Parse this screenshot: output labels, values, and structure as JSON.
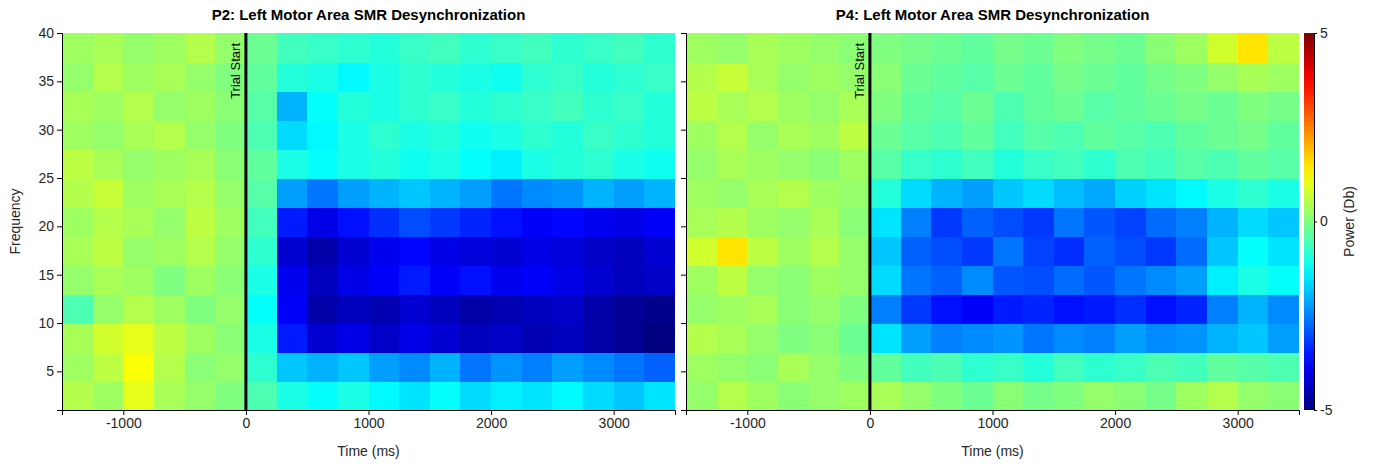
{
  "chart_data": [
    {
      "type": "heatmap",
      "title": "P2: Left Motor Area SMR Desynchronization",
      "x_label": "Time (ms)",
      "y_label": "Frequency",
      "xlim": [
        -1500,
        3500
      ],
      "ylim": [
        1,
        40
      ],
      "xticks": [
        -1000,
        0,
        1000,
        2000,
        3000
      ],
      "yticks": [
        5,
        10,
        15,
        20,
        25,
        30,
        35,
        40
      ],
      "color": "jet",
      "zlim": [
        -5,
        5
      ],
      "x_bins": [
        -1500,
        -1250,
        -1000,
        -750,
        -500,
        -250,
        0,
        250,
        500,
        750,
        1000,
        1250,
        1500,
        1750,
        2000,
        2250,
        2500,
        2750,
        3000,
        3250,
        3500
      ],
      "y_bins": [
        1,
        4,
        7,
        10,
        13,
        16,
        19,
        22,
        25,
        28,
        31,
        34,
        37,
        40
      ],
      "z": [
        [
          0.5,
          0.3,
          1.0,
          0.4,
          0.2,
          0.0,
          -0.5,
          -1.0,
          -1.2,
          -1.0,
          -1.3,
          -1.5,
          -1.2,
          -1.6,
          -1.4,
          -1.5,
          -1.3,
          -1.6,
          -1.8,
          -1.5
        ],
        [
          0.3,
          0.6,
          1.2,
          0.5,
          0.1,
          0.2,
          -0.8,
          -1.8,
          -2.0,
          -1.8,
          -2.2,
          -2.4,
          -2.0,
          -2.6,
          -2.3,
          -2.5,
          -2.2,
          -2.4,
          -2.6,
          -2.8
        ],
        [
          0.4,
          0.8,
          1.0,
          0.6,
          0.3,
          0.1,
          -1.0,
          -3.5,
          -4.2,
          -4.0,
          -4.3,
          -4.0,
          -4.2,
          -4.4,
          -4.3,
          -4.5,
          -4.4,
          -4.6,
          -4.8,
          -5.0
        ],
        [
          -0.5,
          0.2,
          0.5,
          0.3,
          0.0,
          0.2,
          -1.2,
          -3.8,
          -4.6,
          -4.4,
          -4.5,
          -4.2,
          -4.4,
          -4.6,
          -4.5,
          -4.4,
          -4.3,
          -4.6,
          -4.8,
          -4.9
        ],
        [
          0.2,
          0.4,
          0.3,
          0.0,
          0.3,
          0.1,
          -1.0,
          -3.9,
          -4.4,
          -4.0,
          -3.8,
          -3.5,
          -3.8,
          -3.6,
          -3.9,
          -3.8,
          -4.0,
          -4.2,
          -4.4,
          -4.3
        ],
        [
          0.4,
          0.6,
          0.2,
          0.3,
          0.5,
          0.2,
          -0.8,
          -4.2,
          -4.6,
          -4.2,
          -3.9,
          -3.7,
          -4.0,
          -4.1,
          -4.2,
          -4.0,
          -4.1,
          -4.3,
          -4.4,
          -4.2
        ],
        [
          0.3,
          0.5,
          0.4,
          0.2,
          0.6,
          0.3,
          -0.6,
          -3.5,
          -4.0,
          -3.6,
          -3.3,
          -3.0,
          -3.2,
          -3.4,
          -3.6,
          -3.8,
          -3.7,
          -3.9,
          -4.0,
          -3.8
        ],
        [
          0.5,
          0.7,
          0.3,
          0.4,
          0.5,
          0.2,
          -0.4,
          -2.2,
          -2.6,
          -2.2,
          -2.0,
          -1.8,
          -2.0,
          -2.2,
          -2.6,
          -2.4,
          -2.3,
          -2.0,
          -2.2,
          -2.0
        ],
        [
          0.6,
          0.4,
          0.2,
          0.3,
          0.4,
          0.1,
          -0.3,
          -1.0,
          -1.2,
          -1.0,
          -0.9,
          -1.1,
          -1.0,
          -1.2,
          -1.4,
          -1.0,
          -0.9,
          -0.8,
          -1.0,
          -1.1
        ],
        [
          0.3,
          0.2,
          0.4,
          0.5,
          0.2,
          0.0,
          -0.5,
          -1.6,
          -1.3,
          -1.0,
          -0.8,
          -1.0,
          -0.9,
          -1.1,
          -1.0,
          -0.8,
          -0.9,
          -0.7,
          -0.8,
          -0.9
        ],
        [
          0.4,
          0.3,
          0.5,
          0.2,
          0.3,
          0.1,
          -0.4,
          -2.0,
          -1.2,
          -0.9,
          -1.0,
          -0.8,
          -0.7,
          -0.9,
          -0.8,
          -0.7,
          -0.6,
          -0.8,
          -0.7,
          -0.9
        ],
        [
          0.2,
          0.5,
          0.3,
          0.4,
          0.2,
          0.0,
          -0.3,
          -0.9,
          -1.0,
          -1.3,
          -1.0,
          -0.8,
          -0.9,
          -1.0,
          -1.1,
          -0.8,
          -0.7,
          -0.9,
          -0.8,
          -0.7
        ],
        [
          0.3,
          0.4,
          0.2,
          0.3,
          0.5,
          0.2,
          -0.2,
          -0.6,
          -0.7,
          -0.8,
          -0.9,
          -0.7,
          -0.6,
          -0.8,
          -0.7,
          -0.6,
          -0.8,
          -0.7,
          -0.6,
          -0.8
        ]
      ],
      "annotations": [
        {
          "text": "Trial Start",
          "x": 0
        }
      ]
    },
    {
      "type": "heatmap",
      "title": "P4: Left Motor Area SMR Desynchronization",
      "x_label": "Time (ms)",
      "xlim": [
        -1500,
        3500
      ],
      "ylim": [
        1,
        40
      ],
      "xticks": [
        -1000,
        0,
        1000,
        2000,
        3000
      ],
      "yticks": [
        5,
        10,
        15,
        20,
        25,
        30,
        35,
        40
      ],
      "tick_labels": "x",
      "color": "jet",
      "zlim": [
        -5,
        5
      ],
      "x_bins": [
        -1500,
        -1250,
        -1000,
        -750,
        -500,
        -250,
        0,
        250,
        500,
        750,
        1000,
        1250,
        1500,
        1750,
        2000,
        2250,
        2500,
        2750,
        3000,
        3250,
        3500
      ],
      "y_bins": [
        1,
        4,
        7,
        10,
        13,
        16,
        19,
        22,
        25,
        28,
        31,
        34,
        37,
        40
      ],
      "z": [
        [
          0.2,
          0.5,
          0.3,
          0.1,
          0.2,
          0.3,
          0.4,
          0.2,
          0.0,
          -0.2,
          0.1,
          -0.1,
          0.0,
          0.2,
          0.1,
          -0.1,
          0.3,
          0.5,
          0.2,
          0.1
        ],
        [
          0.3,
          0.2,
          0.1,
          0.4,
          0.2,
          0.0,
          -0.3,
          -0.6,
          -0.5,
          -0.8,
          -0.7,
          -0.9,
          -0.6,
          -0.8,
          -0.7,
          -0.5,
          -0.6,
          -0.3,
          -0.4,
          -0.5
        ],
        [
          0.5,
          0.4,
          0.2,
          0.0,
          0.1,
          -0.2,
          -1.5,
          -2.2,
          -2.5,
          -2.4,
          -2.3,
          -2.6,
          -2.4,
          -2.5,
          -2.2,
          -2.4,
          -2.3,
          -2.0,
          -1.8,
          -2.2
        ],
        [
          0.2,
          0.3,
          0.4,
          0.1,
          0.2,
          0.0,
          -2.5,
          -3.2,
          -3.6,
          -3.8,
          -3.5,
          -3.4,
          -3.6,
          -3.5,
          -3.3,
          -3.6,
          -3.4,
          -2.5,
          -2.0,
          -2.4
        ],
        [
          0.3,
          0.6,
          0.2,
          0.1,
          0.3,
          0.2,
          -1.6,
          -2.6,
          -2.8,
          -2.4,
          -2.9,
          -3.0,
          -2.7,
          -2.9,
          -2.6,
          -2.4,
          -2.2,
          -1.4,
          -1.0,
          -1.2
        ],
        [
          0.8,
          1.5,
          0.6,
          0.3,
          0.5,
          0.2,
          -1.8,
          -2.8,
          -3.0,
          -3.2,
          -2.6,
          -3.1,
          -3.3,
          -2.8,
          -3.0,
          -3.2,
          -2.7,
          -1.8,
          -1.2,
          -1.5
        ],
        [
          0.4,
          0.5,
          0.3,
          0.2,
          0.4,
          0.1,
          -1.5,
          -2.5,
          -3.2,
          -2.8,
          -3.0,
          -3.2,
          -2.6,
          -2.9,
          -3.1,
          -2.7,
          -2.5,
          -2.0,
          -1.6,
          -1.8
        ],
        [
          0.3,
          0.2,
          0.4,
          0.5,
          0.3,
          0.2,
          -0.9,
          -1.6,
          -2.0,
          -2.2,
          -1.8,
          -1.6,
          -1.9,
          -2.1,
          -1.7,
          -1.5,
          -1.3,
          -1.0,
          -0.8,
          -1.0
        ],
        [
          0.2,
          0.4,
          0.3,
          0.2,
          0.1,
          0.3,
          -0.4,
          -0.7,
          -0.8,
          -0.6,
          -0.9,
          -0.7,
          -0.6,
          -0.8,
          -0.5,
          -0.6,
          -0.4,
          -0.5,
          -0.3,
          -0.4
        ],
        [
          0.3,
          0.5,
          0.2,
          0.4,
          0.3,
          0.6,
          -0.2,
          -0.4,
          -0.5,
          -0.3,
          -0.6,
          -0.4,
          -0.5,
          -0.3,
          -0.4,
          -0.5,
          -0.3,
          -0.2,
          -0.1,
          -0.3
        ],
        [
          0.6,
          0.4,
          0.5,
          0.3,
          0.2,
          0.4,
          0.0,
          -0.3,
          -0.4,
          -0.2,
          -0.5,
          -0.3,
          -0.2,
          -0.4,
          -0.3,
          -0.2,
          -0.1,
          -0.2,
          0.0,
          -0.1
        ],
        [
          0.5,
          0.7,
          0.4,
          0.2,
          0.3,
          0.2,
          0.1,
          -0.2,
          -0.3,
          -0.4,
          -0.2,
          -0.3,
          -0.1,
          -0.2,
          -0.3,
          -0.1,
          0.0,
          0.2,
          0.4,
          0.3
        ],
        [
          0.3,
          0.2,
          0.4,
          0.3,
          0.2,
          0.1,
          0.0,
          -0.1,
          -0.2,
          -0.3,
          -0.1,
          -0.2,
          0.0,
          -0.1,
          -0.2,
          0.1,
          0.3,
          0.8,
          1.5,
          0.6
        ]
      ],
      "annotations": [
        {
          "text": "Trial Start",
          "x": 0
        }
      ],
      "colorbar": {
        "label": "Power (Db)",
        "ticks": [
          -5,
          0,
          5
        ]
      }
    }
  ]
}
